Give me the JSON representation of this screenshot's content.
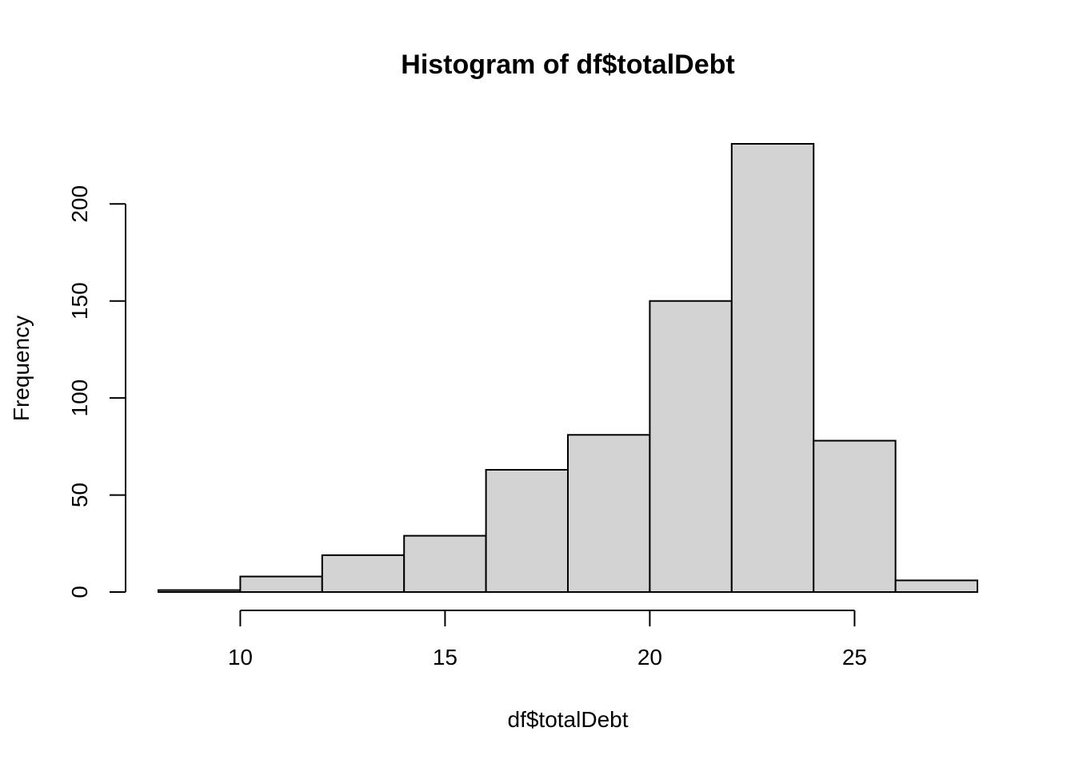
{
  "chart_data": {
    "type": "bar",
    "title": "Histogram of df$totalDebt",
    "xlabel": "df$totalDebt",
    "ylabel": "Frequency",
    "bins": [
      {
        "start": 8,
        "end": 10,
        "count": 1
      },
      {
        "start": 10,
        "end": 12,
        "count": 8
      },
      {
        "start": 12,
        "end": 14,
        "count": 19
      },
      {
        "start": 14,
        "end": 16,
        "count": 29
      },
      {
        "start": 16,
        "end": 18,
        "count": 63
      },
      {
        "start": 18,
        "end": 20,
        "count": 81
      },
      {
        "start": 20,
        "end": 22,
        "count": 150
      },
      {
        "start": 22,
        "end": 24,
        "count": 231
      },
      {
        "start": 24,
        "end": 26,
        "count": 78
      },
      {
        "start": 26,
        "end": 28,
        "count": 6
      }
    ],
    "xticks": [
      10,
      15,
      20,
      25
    ],
    "yticks": [
      0,
      50,
      100,
      150,
      200
    ],
    "xlim": [
      8,
      28
    ],
    "ylim": [
      0,
      231
    ],
    "bar_color": "#d3d3d3",
    "grid": false,
    "legend": "none"
  }
}
